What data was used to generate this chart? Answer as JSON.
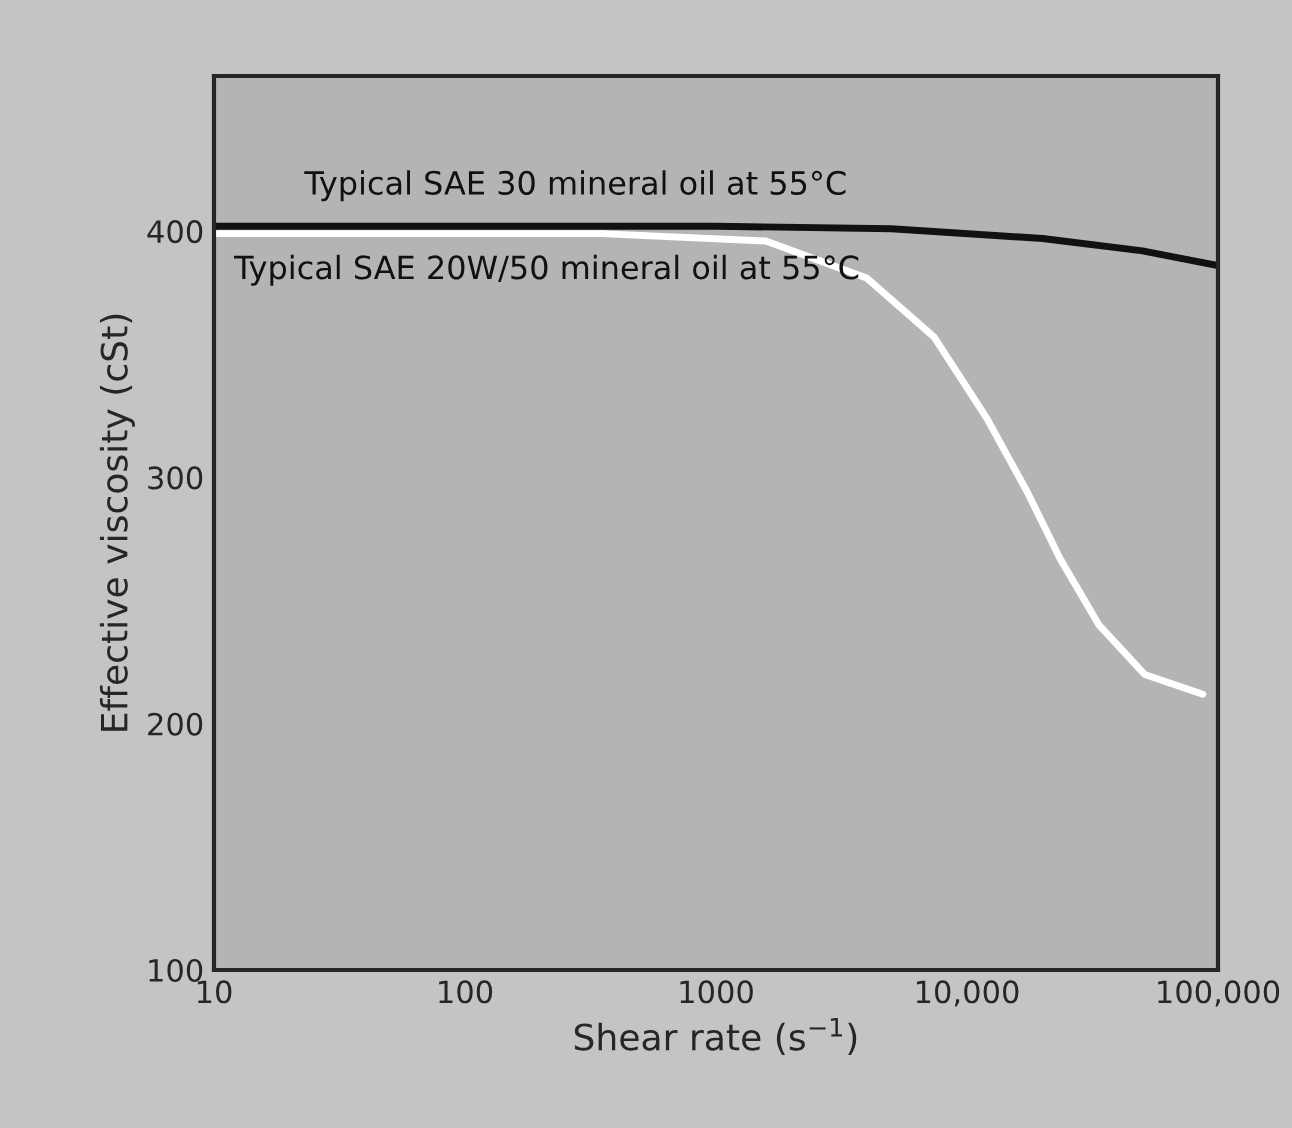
{
  "chart_data": {
    "type": "line",
    "xlabel": "Shear rate (s$^{−1}$)",
    "ylabel": "Effective viscosity (cSt)",
    "series": [
      {
        "color": "#111111",
        "x": [
          10,
          1000,
          5000,
          20000,
          50000,
          100000
        ],
        "values": [
          402,
          402,
          401,
          397,
          392,
          386
        ]
      },
      {
        "color": "#ffffff",
        "x": [
          10,
          100,
          350,
          1580,
          3980,
          7400,
          12000,
          17400,
          23500,
          33600,
          51000,
          87000
        ],
        "values": [
          399,
          399,
          399,
          396,
          381,
          357,
          324,
          294,
          267,
          240,
          220,
          212
        ]
      }
    ],
    "annotations": [
      "Typical SAE 30 mineral oil at 55°C",
      "Typical SAE 20W/50 mineral oil at 55°C"
    ],
    "log": "x",
    "xlim": [
      10,
      100000
    ],
    "ylim": [
      100,
      463
    ],
    "xticks": [
      10,
      100,
      1000,
      {
        "value": 10000,
        "label": "10,000"
      },
      {
        "value": 100000,
        "label": "100,000"
      }
    ],
    "yticks": [
      100,
      200,
      300,
      400
    ],
    "grid": false,
    "legend": false,
    "marker": "none",
    "line_style": "solid"
  }
}
